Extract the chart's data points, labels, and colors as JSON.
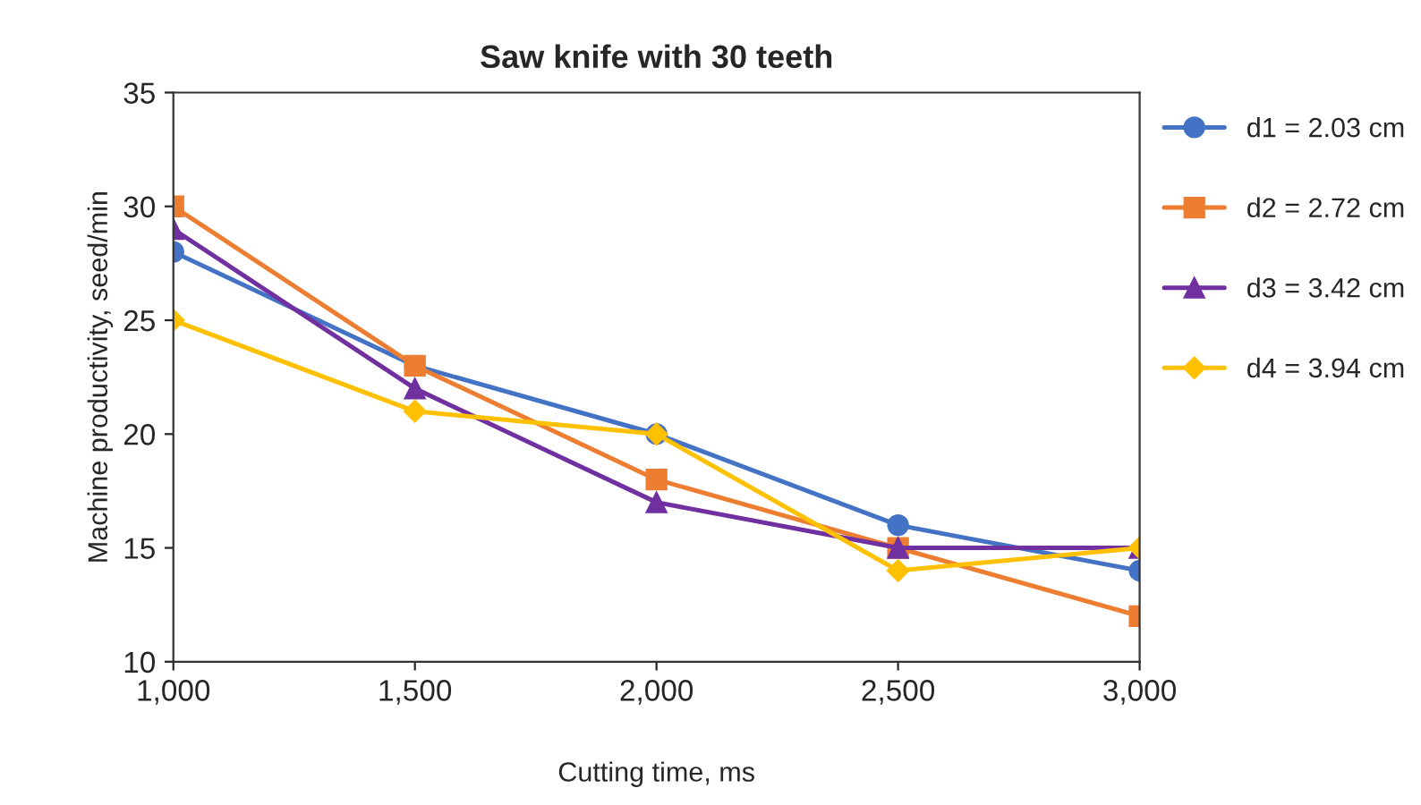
{
  "chart_data": {
    "type": "line",
    "title": "Saw knife with 30 teeth",
    "xlabel": "Cutting time, ms",
    "ylabel": "Machine productivity, seed/min",
    "x": [
      1000,
      1500,
      2000,
      2500,
      3000
    ],
    "series": [
      {
        "name": "d1 = 2.03 cm",
        "color": "#4472c4",
        "marker": "circle",
        "values": [
          28,
          23,
          20,
          16,
          14
        ]
      },
      {
        "name": "d2 = 2.72 cm",
        "color": "#ed7d31",
        "marker": "square",
        "values": [
          30,
          23,
          18,
          15,
          12
        ]
      },
      {
        "name": "d3 = 3.42 cm",
        "color": "#7030a0",
        "marker": "triangle",
        "values": [
          29,
          22,
          17,
          15,
          15
        ]
      },
      {
        "name": "d4 = 3.94 cm",
        "color": "#ffc000",
        "marker": "diamond",
        "values": [
          25,
          21,
          20,
          14,
          15
        ]
      }
    ],
    "xlim": [
      1000,
      3000
    ],
    "xticks": [
      {
        "value": 1000,
        "label": "1,000"
      },
      {
        "value": 1500,
        "label": "1,500"
      },
      {
        "value": 2000,
        "label": "2,000"
      },
      {
        "value": 2500,
        "label": "2,500"
      },
      {
        "value": 3000,
        "label": "3,000"
      }
    ],
    "ylim": [
      10,
      35
    ],
    "yticks": [
      10,
      15,
      20,
      25,
      30,
      35
    ],
    "grid": false,
    "legend": "right",
    "line_style": "solid"
  }
}
